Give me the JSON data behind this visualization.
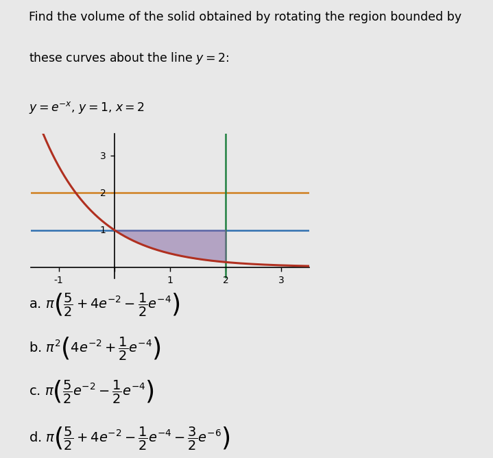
{
  "title_line1": "Find the volume of the solid obtained by rotating the region bounded by",
  "title_line2": "these curves about the line $y = 2$:",
  "subtitle": "$y = e^{-x}$, $y = 1$, $x = 2$",
  "bg_color": "#e8e8e8",
  "plot_bg": "#e8e8e8",
  "answer_a": "a. $\\pi \\left(\\dfrac{5}{2} + 4e^{-2} - \\dfrac{1}{2}e^{-4}\\right)$",
  "answer_b": "b. $\\pi^2 \\left(4e^{-2} + \\dfrac{1}{2}e^{-4}\\right)$",
  "answer_c": "c. $\\pi \\left(\\dfrac{5}{2}e^{-2} - \\dfrac{1}{2}e^{-4}\\right)$",
  "answer_d": "d. $\\pi \\left(\\dfrac{5}{2} + 4e^{-2} - \\dfrac{1}{2}e^{-4} - \\dfrac{3}{2}e^{-6}\\right)$",
  "curve_color": "#b03020",
  "y1_line_color": "#3070b0",
  "y2_line_color": "#d08020",
  "x2_line_color": "#208040",
  "shaded_color": "#8060a0",
  "shaded_alpha": 0.5,
  "xlim": [
    -1.5,
    3.5
  ],
  "ylim": [
    -0.3,
    3.6
  ],
  "xticks": [
    -1,
    0,
    1,
    2,
    3
  ],
  "yticks": [
    1,
    2,
    3
  ],
  "font_size_title": 12.5,
  "font_size_answers": 14
}
